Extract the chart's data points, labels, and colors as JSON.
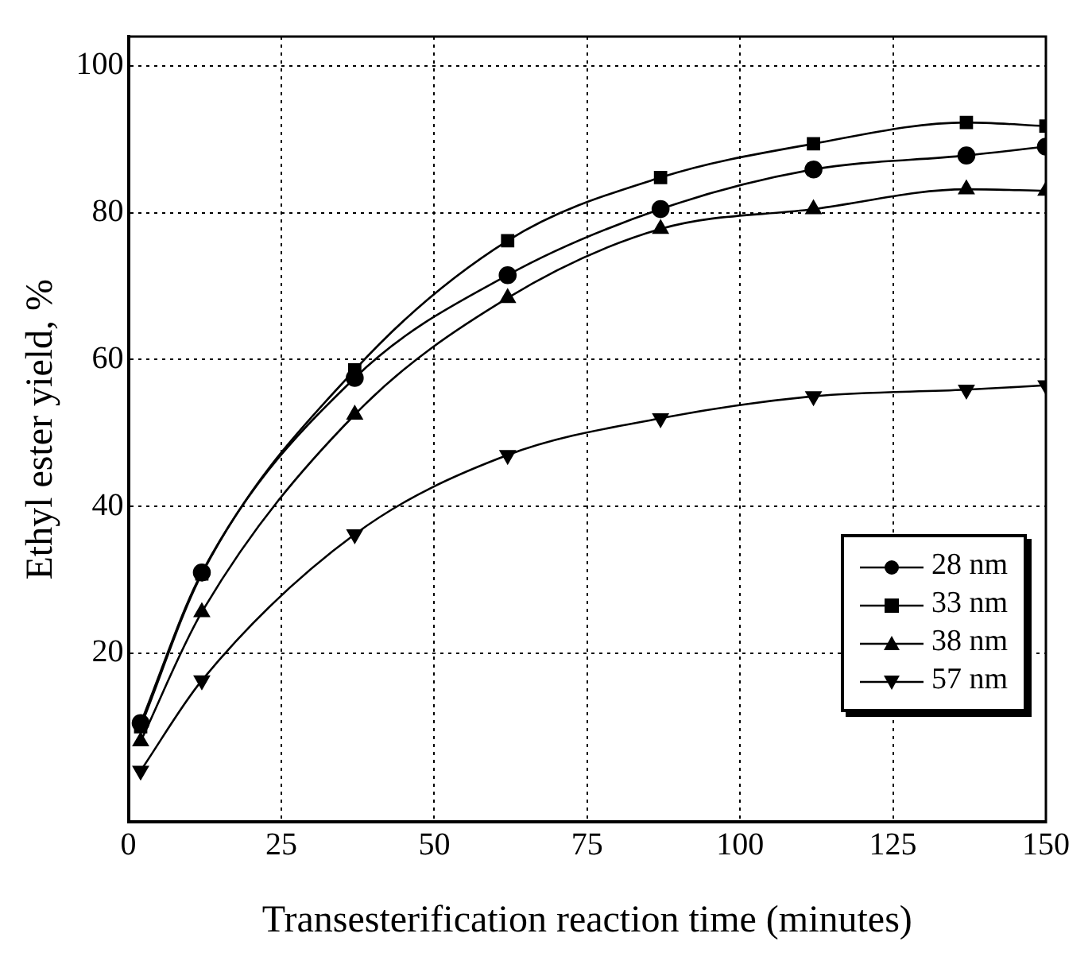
{
  "chart_data": {
    "type": "line",
    "xlabel": "Transesterification reaction time (minutes)",
    "ylabel": "Ethyl ester yield, %",
    "x": [
      2,
      12,
      37,
      62,
      87,
      112,
      137,
      150
    ],
    "series": [
      {
        "name": "28 nm",
        "color": "#000000",
        "marker": "circle",
        "values": [
          10.5,
          31,
          57.5,
          71.5,
          80.5,
          85.9,
          87.8,
          89
        ]
      },
      {
        "name": "33 nm",
        "color": "#000000",
        "marker": "square",
        "values": [
          10,
          30.8,
          58.6,
          76.2,
          84.8,
          89.4,
          92.3,
          91.8
        ]
      },
      {
        "name": "38 nm",
        "color": "#000000",
        "marker": "triangle",
        "values": [
          8,
          25.6,
          52.5,
          68.4,
          77.8,
          80.5,
          83.2,
          83
        ]
      },
      {
        "name": "57 nm",
        "color": "#000000",
        "marker": "triangle-down",
        "values": [
          4,
          16.3,
          36.2,
          47,
          52,
          55,
          55.9,
          56.5
        ]
      }
    ],
    "xlim": [
      0,
      150
    ],
    "xticks": [
      0,
      25,
      50,
      75,
      100,
      125,
      150
    ],
    "ylim": [
      -3,
      104
    ],
    "yticks": [
      20,
      40,
      60,
      80,
      100
    ],
    "grid": true,
    "legend": "bottom right",
    "line_style": "solid"
  }
}
